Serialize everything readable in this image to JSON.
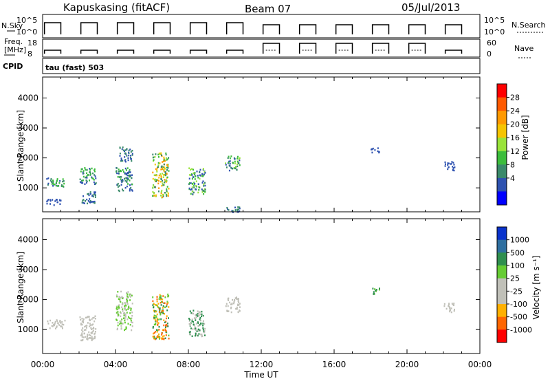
{
  "header": {
    "station": "Kapuskasing (fitACF)",
    "beam": "Beam 07",
    "date": "05/Jul/2013"
  },
  "top_panels": {
    "nsky_label": "N.Sky",
    "nsky_ticks": [
      "10^5",
      "10^0"
    ],
    "nsearch_label": "N.Search",
    "nsearch_ticks": [
      "10^5",
      "10^0"
    ],
    "freq_label_line1": "Freq.",
    "freq_label_line2": "[MHz]",
    "freq_ticks": [
      "18",
      "8"
    ],
    "nave_label": "Nave",
    "nave_ticks": [
      "60",
      "0"
    ],
    "cpid_label": "CPID",
    "cpid_value": "tau (fast) 503"
  },
  "x_axis": {
    "label": "Time UT",
    "ticks": [
      "00:00",
      "04:00",
      "08:00",
      "12:00",
      "16:00",
      "20:00",
      "00:00"
    ]
  },
  "chart_data": [
    {
      "type": "heatmap",
      "name": "power",
      "ylabel": "Slant Range [km]",
      "yticks": [
        "4000",
        "3000",
        "2000",
        "1000"
      ],
      "ylim": [
        200,
        4700
      ],
      "xlim_hours": [
        0,
        24
      ],
      "colorbar_label": "Power [dB]",
      "colorbar_ticks": [
        "28",
        "24",
        "20",
        "16",
        "12",
        "8",
        "4"
      ],
      "colorbar_colors": [
        "#ff0000",
        "#ff5a00",
        "#ff9900",
        "#f5c400",
        "#99e33a",
        "#3cbd3c",
        "#3a8a6a",
        "#2e52b0",
        "#0000ff"
      ],
      "scatter_blocks": [
        {
          "t0": 0.2,
          "t1": 1.2,
          "r0": 1050,
          "r1": 1350,
          "c": [
            7,
            6,
            5
          ]
        },
        {
          "t0": 0.2,
          "t1": 1.0,
          "r0": 450,
          "r1": 650,
          "c": [
            7
          ]
        },
        {
          "t0": 2.0,
          "t1": 2.9,
          "r0": 1150,
          "r1": 1700,
          "c": [
            7,
            6,
            5
          ]
        },
        {
          "t0": 2.1,
          "t1": 2.9,
          "r0": 500,
          "r1": 900,
          "c": [
            7,
            6
          ]
        },
        {
          "t0": 4.0,
          "t1": 4.9,
          "r0": 900,
          "r1": 1700,
          "c": [
            7,
            6,
            5
          ]
        },
        {
          "t0": 4.2,
          "t1": 4.9,
          "r0": 1900,
          "r1": 2400,
          "c": [
            7,
            6
          ]
        },
        {
          "t0": 6.0,
          "t1": 6.9,
          "r0": 700,
          "r1": 2200,
          "c": [
            2,
            3,
            4,
            5,
            6
          ]
        },
        {
          "t0": 8.0,
          "t1": 8.9,
          "r0": 800,
          "r1": 1700,
          "c": [
            7,
            6,
            5,
            4
          ]
        },
        {
          "t0": 10.0,
          "t1": 10.8,
          "r0": 1600,
          "r1": 2100,
          "c": [
            4,
            5,
            6,
            7
          ]
        },
        {
          "t0": 10.0,
          "t1": 10.8,
          "r0": 200,
          "r1": 400,
          "c": [
            7,
            6
          ]
        },
        {
          "t0": 18.0,
          "t1": 18.5,
          "r0": 2200,
          "r1": 2400,
          "c": [
            7
          ]
        },
        {
          "t0": 22.0,
          "t1": 22.6,
          "r0": 1600,
          "r1": 1900,
          "c": [
            7
          ]
        }
      ]
    },
    {
      "type": "heatmap",
      "name": "velocity",
      "ylabel": "Slant Range [km]",
      "yticks": [
        "4000",
        "3000",
        "2000",
        "1000"
      ],
      "ylim": [
        200,
        4700
      ],
      "xlim_hours": [
        0,
        24
      ],
      "colorbar_label": "Velocity [m s⁻¹]",
      "colorbar_ticks": [
        "1000",
        "500",
        "100",
        "25",
        "-25",
        "-100",
        "-500",
        "-1000"
      ],
      "colorbar_colors": [
        "#0a33cc",
        "#2e6fa0",
        "#2f8f4f",
        "#66cc33",
        "#c0c0b8",
        "#c0c0b8",
        "#ffb000",
        "#ff6600",
        "#ff0000"
      ],
      "scatter_blocks": [
        {
          "t0": 0.2,
          "t1": 1.2,
          "r0": 1050,
          "r1": 1350,
          "c": [
            4
          ]
        },
        {
          "t0": 2.0,
          "t1": 2.9,
          "r0": 650,
          "r1": 1500,
          "c": [
            4
          ]
        },
        {
          "t0": 4.0,
          "t1": 4.9,
          "r0": 1000,
          "r1": 2300,
          "c": [
            4,
            3
          ]
        },
        {
          "t0": 6.0,
          "t1": 6.9,
          "r0": 700,
          "r1": 2200,
          "c": [
            2,
            3,
            6,
            7
          ]
        },
        {
          "t0": 8.0,
          "t1": 8.9,
          "r0": 800,
          "r1": 1700,
          "c": [
            2,
            4
          ]
        },
        {
          "t0": 10.0,
          "t1": 10.8,
          "r0": 1600,
          "r1": 2100,
          "c": [
            4
          ]
        },
        {
          "t0": 18.0,
          "t1": 18.5,
          "r0": 2200,
          "r1": 2400,
          "c": [
            2,
            3
          ]
        },
        {
          "t0": 22.0,
          "t1": 22.6,
          "r0": 1600,
          "r1": 1900,
          "c": [
            4
          ]
        }
      ]
    }
  ]
}
